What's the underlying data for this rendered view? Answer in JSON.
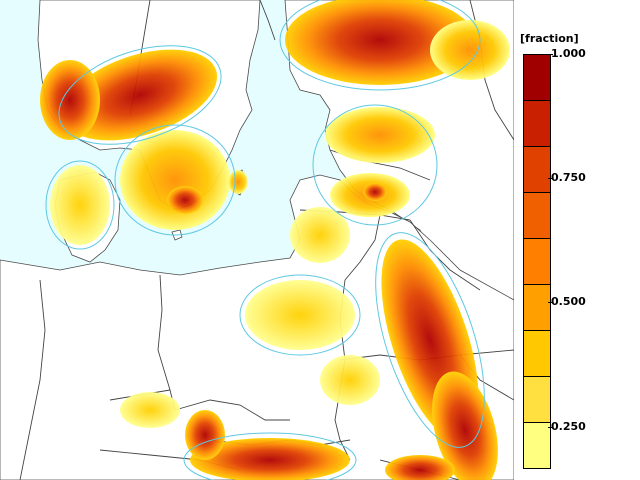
{
  "legend": {
    "unit": "[fraction]",
    "ticks": [
      {
        "label": "1.000",
        "value": 1.0
      },
      {
        "label": "0.750",
        "value": 0.75
      },
      {
        "label": "0.500",
        "value": 0.5
      },
      {
        "label": "0.250",
        "value": 0.25
      }
    ],
    "colors": [
      "#ffff80",
      "#ffe040",
      "#ffc800",
      "#ffa000",
      "#ff8000",
      "#f06000",
      "#e04000",
      "#c82000",
      "#a00000"
    ]
  },
  "map_colors": {
    "sea": "#e6fdff",
    "land": "#ffffff",
    "border": "#555555",
    "contour": "#5ec8e0"
  }
}
